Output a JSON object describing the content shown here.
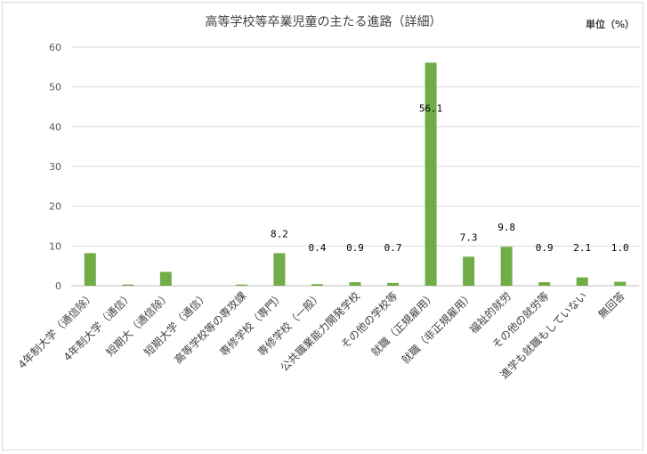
{
  "chart_data": {
    "type": "bar",
    "title": "高等学校等卒業児童の主たる進路（詳細）",
    "unit": "単位（%）",
    "ylim": [
      0,
      60
    ],
    "yticks": [
      0,
      10,
      20,
      30,
      40,
      50,
      60
    ],
    "grid": true,
    "bar_color": "#70ad47",
    "categories": [
      "4年制大学（通信除）",
      "4年制大学（通信）",
      "短期大（通信除）",
      "短期大学（通信）",
      "高等学校等の専攻課",
      "専修学校（専門）",
      "専修学校（一般）",
      "公共職業能力開発学校",
      "その他の学校等",
      "就職（正規雇用）",
      "就職（非正規雇用）",
      "福祉的就労",
      "その他の就労等",
      "進学も就職もしていない",
      "無回答"
    ],
    "values": [
      8.2,
      0.3,
      3.5,
      0.0,
      0.3,
      8.2,
      0.4,
      0.9,
      0.7,
      56.1,
      7.3,
      9.8,
      0.9,
      2.1,
      1.0
    ],
    "data_labels": [
      "",
      "",
      "",
      "",
      "",
      "8.2",
      "0.4",
      "0.9",
      "0.7",
      "56.1",
      "7.3",
      "9.8",
      "0.9",
      "2.1",
      "1.0"
    ]
  }
}
